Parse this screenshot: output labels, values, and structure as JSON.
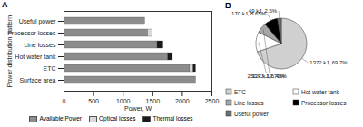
{
  "chart_data": [
    {
      "type": "bar",
      "title": "A",
      "orientation": "horizontal",
      "stacked": true,
      "xlabel": "Power, W",
      "ylabel": "Power distribution pattern",
      "categories": [
        "Useful power",
        "Processor losses",
        "Line losses",
        "Hot water tank",
        "ETC",
        "Surface area"
      ],
      "series": [
        {
          "name": "Available Power",
          "color": "#8c8c8c",
          "values": [
            1370,
            1420,
            1580,
            1760,
            2130,
            2230
          ]
        },
        {
          "name": "Optical losses",
          "color": "#d9d9d9",
          "values": [
            0,
            70,
            0,
            0,
            60,
            0
          ]
        },
        {
          "name": "Thermal losses",
          "color": "#1a1a1a",
          "values": [
            0,
            0,
            100,
            80,
            40,
            0
          ]
        }
      ],
      "xlim": [
        0,
        2500
      ],
      "xticks": [
        0,
        500,
        1000,
        1500,
        2000,
        2500
      ],
      "grid": false,
      "legend": "bottom"
    },
    {
      "type": "pie",
      "title": "B",
      "categories": [
        "ETC",
        "Hot water tank",
        "Line losses",
        "Processor losses",
        "Useful power"
      ],
      "values": [
        1372,
        250,
        127,
        170,
        49
      ],
      "value_labels": [
        "1372 kJ, 69.7%",
        "250 kJ, 12.70%",
        "127 kJ, 6.45%",
        "170 kJ, 8.65%",
        "49 kJ, 2.5%"
      ],
      "colors": [
        "#d0d0d0",
        "#ffffff",
        "#a6a6a6",
        "#000000",
        "#6e6e6e"
      ],
      "data_labels": true,
      "legend": "bottom"
    }
  ]
}
